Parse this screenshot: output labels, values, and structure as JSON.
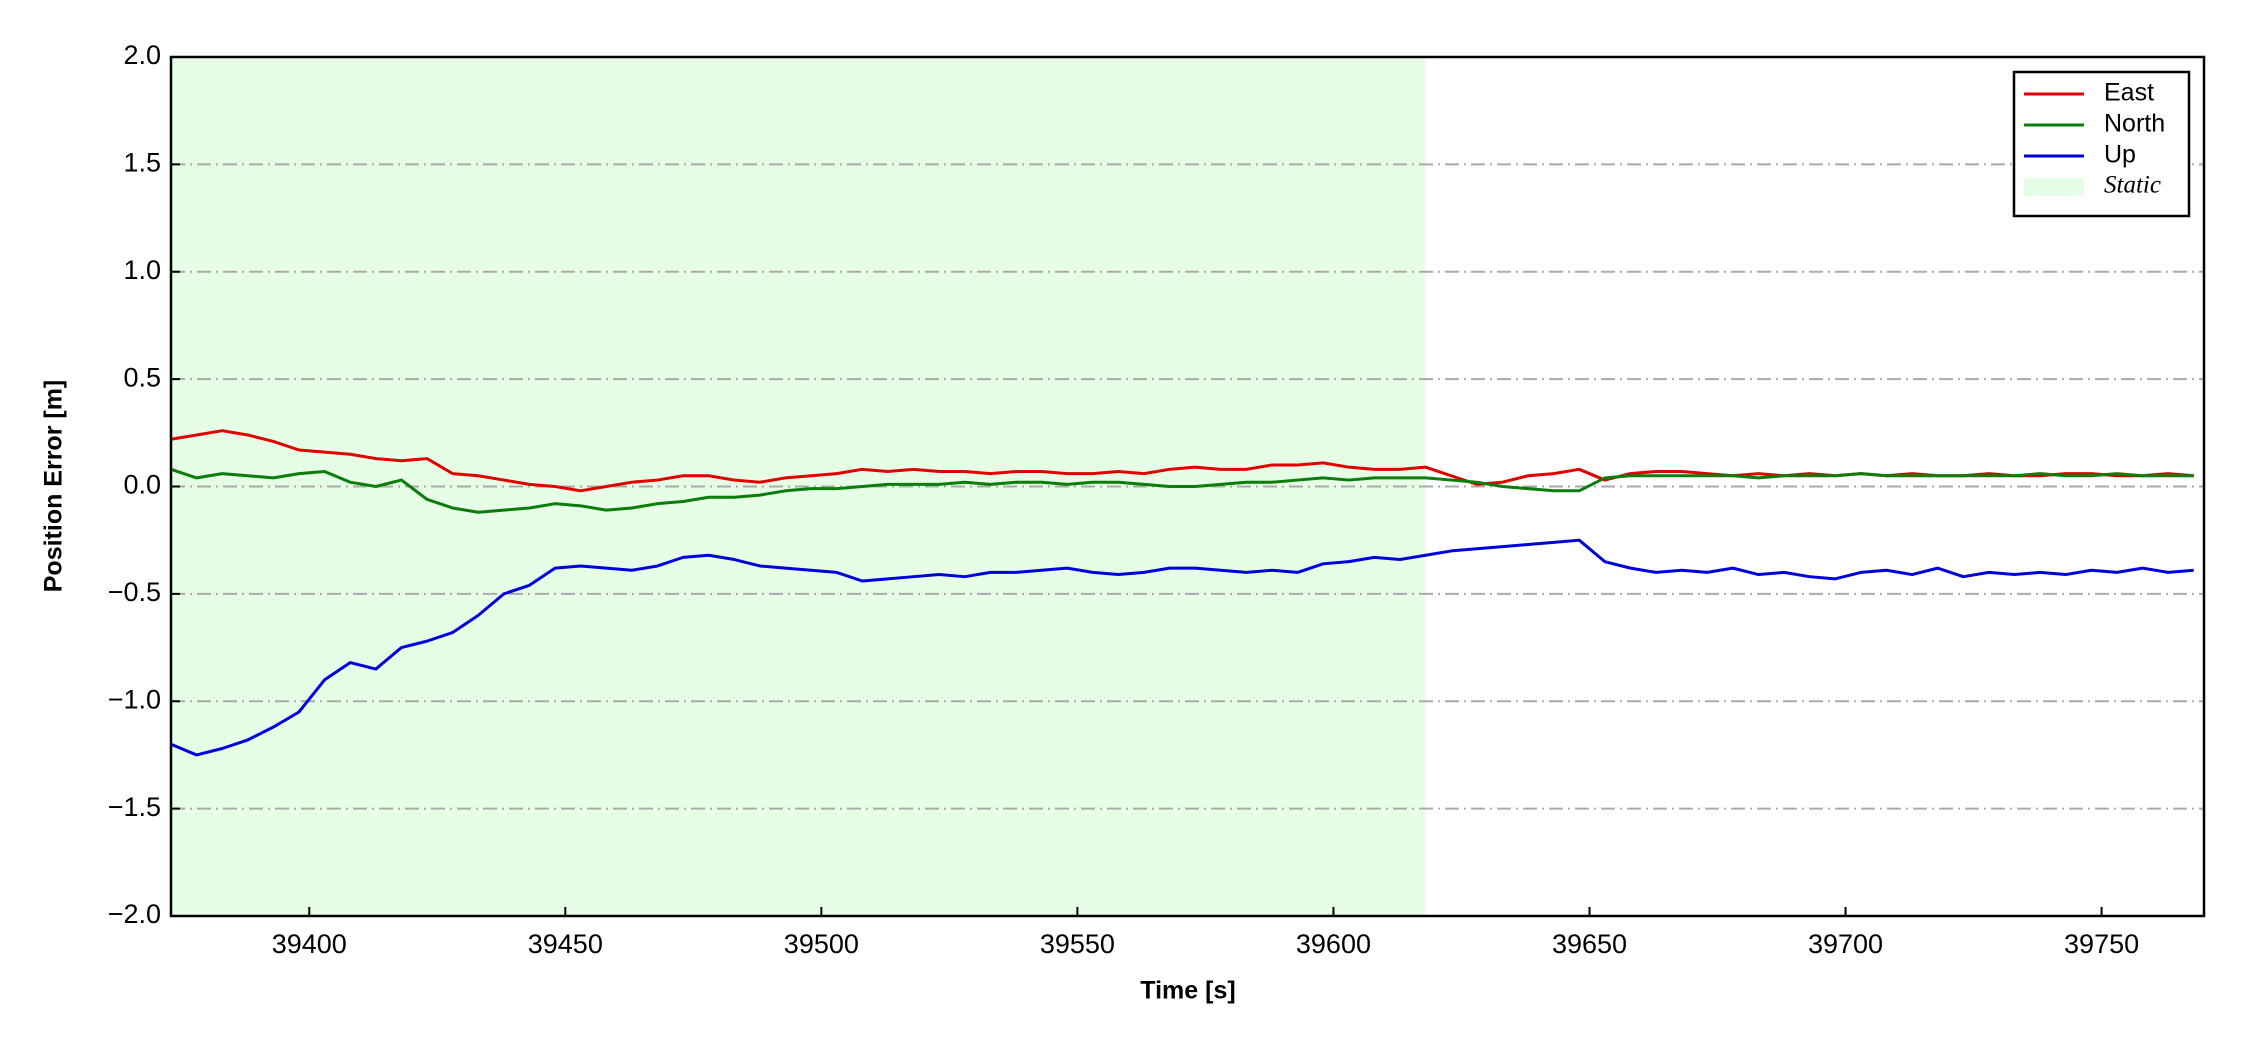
{
  "chart_data": {
    "type": "line",
    "xlabel": "Time [s]",
    "ylabel": "Position Error [m]",
    "xlim": [
      39373,
      39770
    ],
    "ylim": [
      -2,
      2
    ],
    "xticks": [
      39400,
      39450,
      39500,
      39550,
      39600,
      39650,
      39700,
      39750
    ],
    "yticks": [
      {
        "value": -2,
        "label": "−2.0"
      },
      {
        "value": -1.5,
        "label": "−1.5"
      },
      {
        "value": -1,
        "label": "−1.0"
      },
      {
        "value": -0.5,
        "label": "−0.5"
      },
      {
        "value": 0,
        "label": "0.0"
      },
      {
        "value": 0.5,
        "label": "0.5"
      },
      {
        "value": 1,
        "label": "1.0"
      },
      {
        "value": 1.5,
        "label": "1.5"
      },
      {
        "value": 2,
        "label": "2.0"
      }
    ],
    "grid": true,
    "legend": "upper right",
    "shading": {
      "name": "Static",
      "x0": 39373,
      "x1": 39618,
      "color": "#e6fde6"
    },
    "x": [
      39373,
      39378,
      39383,
      39388,
      39393,
      39398,
      39403,
      39408,
      39413,
      39418,
      39423,
      39428,
      39433,
      39438,
      39443,
      39448,
      39453,
      39458,
      39463,
      39468,
      39473,
      39478,
      39483,
      39488,
      39493,
      39498,
      39503,
      39508,
      39513,
      39518,
      39523,
      39528,
      39533,
      39538,
      39543,
      39548,
      39553,
      39558,
      39563,
      39568,
      39573,
      39578,
      39583,
      39588,
      39593,
      39598,
      39603,
      39608,
      39613,
      39618,
      39623,
      39628,
      39633,
      39638,
      39643,
      39648,
      39653,
      39658,
      39663,
      39668,
      39673,
      39678,
      39683,
      39688,
      39693,
      39698,
      39703,
      39708,
      39713,
      39718,
      39723,
      39728,
      39733,
      39738,
      39743,
      39748,
      39753,
      39758,
      39763,
      39768
    ],
    "series": [
      {
        "name": "East",
        "color": "#e00000",
        "values": [
          0.22,
          0.24,
          0.26,
          0.24,
          0.21,
          0.17,
          0.16,
          0.15,
          0.13,
          0.12,
          0.13,
          0.06,
          0.05,
          0.03,
          0.01,
          0.0,
          -0.02,
          0.0,
          0.02,
          0.03,
          0.05,
          0.05,
          0.03,
          0.02,
          0.04,
          0.05,
          0.06,
          0.08,
          0.07,
          0.08,
          0.07,
          0.07,
          0.06,
          0.07,
          0.07,
          0.06,
          0.06,
          0.07,
          0.06,
          0.08,
          0.09,
          0.08,
          0.08,
          0.1,
          0.1,
          0.11,
          0.09,
          0.08,
          0.08,
          0.09,
          0.05,
          0.01,
          0.02,
          0.05,
          0.06,
          0.08,
          0.03,
          0.06,
          0.07,
          0.07,
          0.06,
          0.05,
          0.06,
          0.05,
          0.06,
          0.05,
          0.06,
          0.05,
          0.06,
          0.05,
          0.05,
          0.06,
          0.05,
          0.05,
          0.06,
          0.06,
          0.05,
          0.05,
          0.06,
          0.05
        ]
      },
      {
        "name": "North",
        "color": "#0a7d0a",
        "values": [
          0.08,
          0.04,
          0.06,
          0.05,
          0.04,
          0.06,
          0.07,
          0.02,
          0.0,
          0.03,
          -0.06,
          -0.1,
          -0.12,
          -0.11,
          -0.1,
          -0.08,
          -0.09,
          -0.11,
          -0.1,
          -0.08,
          -0.07,
          -0.05,
          -0.05,
          -0.04,
          -0.02,
          -0.01,
          -0.01,
          0.0,
          0.01,
          0.01,
          0.01,
          0.02,
          0.01,
          0.02,
          0.02,
          0.01,
          0.02,
          0.02,
          0.01,
          0.0,
          0.0,
          0.01,
          0.02,
          0.02,
          0.03,
          0.04,
          0.03,
          0.04,
          0.04,
          0.04,
          0.03,
          0.02,
          0.0,
          -0.01,
          -0.02,
          -0.02,
          0.04,
          0.05,
          0.05,
          0.05,
          0.05,
          0.05,
          0.04,
          0.05,
          0.05,
          0.05,
          0.06,
          0.05,
          0.05,
          0.05,
          0.05,
          0.05,
          0.05,
          0.06,
          0.05,
          0.05,
          0.06,
          0.05,
          0.05,
          0.05
        ]
      },
      {
        "name": "Up",
        "color": "#0000dd",
        "values": [
          -1.2,
          -1.25,
          -1.22,
          -1.18,
          -1.12,
          -1.05,
          -0.9,
          -0.82,
          -0.85,
          -0.75,
          -0.72,
          -0.68,
          -0.6,
          -0.5,
          -0.46,
          -0.38,
          -0.37,
          -0.38,
          -0.39,
          -0.37,
          -0.33,
          -0.32,
          -0.34,
          -0.37,
          -0.38,
          -0.39,
          -0.4,
          -0.44,
          -0.43,
          -0.42,
          -0.41,
          -0.42,
          -0.4,
          -0.4,
          -0.39,
          -0.38,
          -0.4,
          -0.41,
          -0.4,
          -0.38,
          -0.38,
          -0.39,
          -0.4,
          -0.39,
          -0.4,
          -0.36,
          -0.35,
          -0.33,
          -0.34,
          -0.32,
          -0.3,
          -0.29,
          -0.28,
          -0.27,
          -0.26,
          -0.25,
          -0.35,
          -0.38,
          -0.4,
          -0.39,
          -0.4,
          -0.38,
          -0.41,
          -0.4,
          -0.42,
          -0.43,
          -0.4,
          -0.39,
          -0.41,
          -0.38,
          -0.42,
          -0.4,
          -0.41,
          -0.4,
          -0.41,
          -0.39,
          -0.4,
          -0.38,
          -0.4,
          -0.39
        ]
      }
    ]
  }
}
